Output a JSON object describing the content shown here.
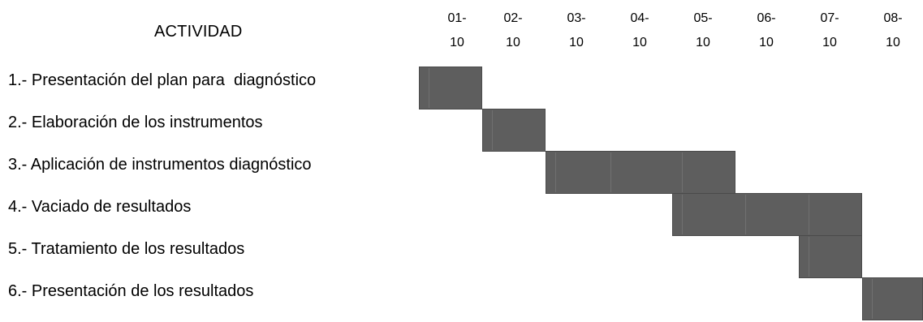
{
  "chart_data": {
    "type": "gantt",
    "header": "ACTIVIDAD",
    "dates": [
      {
        "line1": "01-",
        "line2": "10"
      },
      {
        "line1": "02-",
        "line2": "10"
      },
      {
        "line1": "03-",
        "line2": "10"
      },
      {
        "line1": "04-",
        "line2": "10"
      },
      {
        "line1": "05-",
        "line2": "10"
      },
      {
        "line1": "06-",
        "line2": "10"
      },
      {
        "line1": "07-",
        "line2": "10"
      },
      {
        "line1": "08-",
        "line2": "10"
      }
    ],
    "activities": [
      {
        "label": "1.- Presentación del plan para  diagnóstico",
        "start": 0,
        "end": 1
      },
      {
        "label": "2.- Elaboración de los instrumentos",
        "start": 1,
        "end": 2
      },
      {
        "label": "3.- Aplicación de instrumentos diagnóstico",
        "start": 2,
        "end": 5
      },
      {
        "label": "4.- Vaciado de resultados",
        "start": 4,
        "end": 7
      },
      {
        "label": "5.- Tratamiento de los resultados",
        "start": 6,
        "end": 7
      },
      {
        "label": "6.- Presentación de los resultados",
        "start": 7,
        "end": 8
      }
    ],
    "bar_color": "#5e5e5e"
  }
}
